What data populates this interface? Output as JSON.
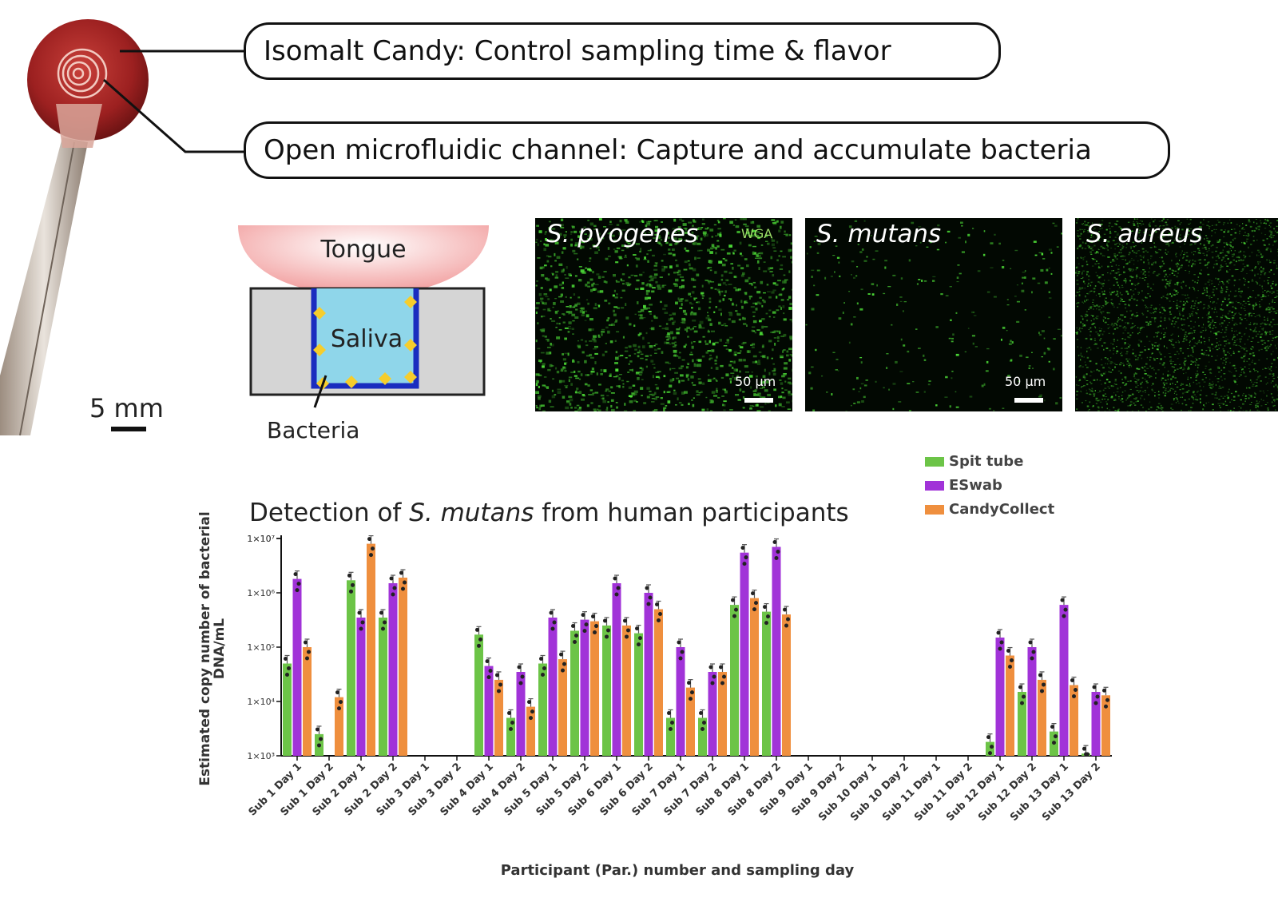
{
  "callouts": {
    "candy": "Isomalt Candy: Control sampling time & flavor",
    "channel": "Open microfluidic channel: Capture and accumulate bacteria"
  },
  "device": {
    "scale_label": "5 mm"
  },
  "schematic": {
    "tongue_label": "Tongue",
    "saliva_label": "Saliva",
    "bacteria_label": "Bacteria"
  },
  "micrographs": [
    {
      "species": "S. pyogenes",
      "stain": "WGA",
      "scale": "50 µm"
    },
    {
      "species": "S. mutans",
      "stain": "",
      "scale": "50 µm"
    },
    {
      "species": "S. aureus",
      "stain": "",
      "scale": ""
    }
  ],
  "colors": {
    "spit_tube": "#6cc447",
    "eswab": "#a133d8",
    "candycollect": "#ef8f3e",
    "candy_red": "#a8282a",
    "saliva_blue": "#8fd6ea",
    "channel_blue": "#1a2dbf",
    "bacteria_yellow": "#f6cd2c"
  },
  "chart_data": {
    "type": "bar",
    "title_prefix": "Detection of ",
    "title_italic": "S. mutans",
    "title_suffix": " from human participants",
    "ylabel_line1": "Estimated copy number of bacterial",
    "ylabel_line2": "DNA/mL",
    "xlabel": "Participant (Par.) number and sampling day",
    "scale": "log10",
    "ylim": [
      1000,
      10000000
    ],
    "yticks": [
      "1×10³",
      "1×10⁴",
      "1×10⁵",
      "1×10⁶",
      "1×10⁷",
      "1×10⁷"
    ],
    "legend_position": "top-right",
    "categories": [
      "Sub 1 Day 1",
      "Sub 1 Day 2",
      "Sub 2 Day 1",
      "Sub 2 Day 2",
      "Sub 3 Day 1",
      "Sub 3 Day 2",
      "Sub 4 Day 1",
      "Sub 4 Day 2",
      "Sub 5 Day 1",
      "Sub 5 Day 2",
      "Sub 6 Day 1",
      "Sub 6 Day 2",
      "Sub 7 Day 1",
      "Sub 7 Day 2",
      "Sub 8 Day 1",
      "Sub 8 Day 2",
      "Sub 9 Day 1",
      "Sub 9 Day 2",
      "Sub 10 Day 1",
      "Sub 10 Day 2",
      "Sub 11 Day 1",
      "Sub 11 Day 2",
      "Sub 12 Day 1",
      "Sub 12 Day 2",
      "Sub 13 Day 1",
      "Sub 13 Day 2"
    ],
    "series": [
      {
        "name": "Spit tube",
        "values": [
          50000,
          2500,
          1700000,
          350000,
          null,
          null,
          170000,
          5000,
          50000,
          200000,
          250000,
          180000,
          5000,
          5000,
          600000,
          450000,
          null,
          null,
          null,
          null,
          null,
          null,
          1800,
          15000,
          2800,
          1100
        ]
      },
      {
        "name": "ESwab",
        "values": [
          1800000,
          null,
          350000,
          1500000,
          null,
          null,
          45000,
          35000,
          350000,
          320000,
          1500000,
          1000000,
          100000,
          35000,
          5500000,
          7000000,
          null,
          null,
          null,
          null,
          null,
          null,
          150000,
          100000,
          600000,
          15000
        ]
      },
      {
        "name": "CandyCollect",
        "values": [
          100000,
          12000,
          8000000,
          1900000,
          null,
          null,
          25000,
          8000,
          60000,
          300000,
          250000,
          500000,
          18000,
          35000,
          800000,
          400000,
          null,
          null,
          null,
          null,
          null,
          null,
          70000,
          25000,
          20000,
          13000
        ]
      }
    ]
  }
}
